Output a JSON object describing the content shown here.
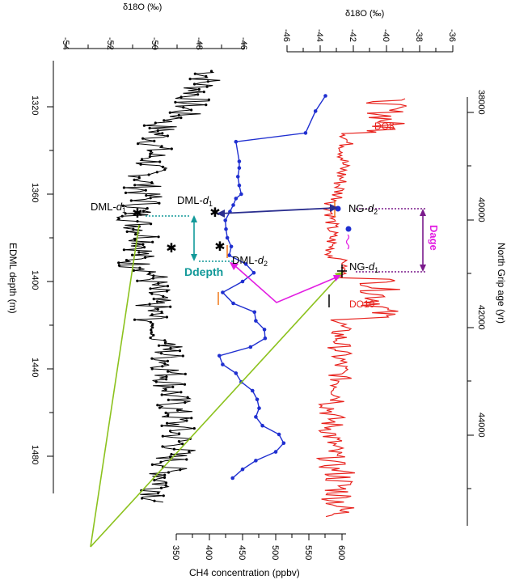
{
  "chart_data": {
    "type": "line",
    "panels": {
      "edml_d18o": {
        "top_axis_label": "δ18O (‰)",
        "top_ticks": [
          "-54",
          "-52",
          "-50",
          "-48",
          "-46"
        ],
        "left_axis_label": "EDML depth (m)",
        "left_ticks": [
          "1320",
          "1360",
          "1400",
          "1440",
          "1480"
        ],
        "color": "#000000"
      },
      "ch4": {
        "bottom_axis_label": "CH4 concentration (ppbv)",
        "bottom_ticks": [
          "350",
          "400",
          "450",
          "500",
          "550",
          "600"
        ],
        "color": "#1f2fd0"
      },
      "ngrip_d18o": {
        "top_axis_label": "δ18O (‰)",
        "top_ticks": [
          "-46",
          "-44",
          "-42",
          "-40",
          "-38",
          "-36"
        ],
        "right_axis_label": "North Grip age (yr)",
        "right_ticks": [
          "38000",
          "40000",
          "42000",
          "44000"
        ],
        "color": "#e8211c"
      }
    },
    "ch4_series": {
      "depth_m": [
        1315,
        1322,
        1332,
        1336,
        1345,
        1348,
        1352,
        1356,
        1360,
        1362,
        1365,
        1368,
        1372,
        1376,
        1380,
        1384,
        1388,
        1392,
        1396,
        1400,
        1405,
        1410,
        1414,
        1418,
        1422,
        1426,
        1430,
        1434,
        1438,
        1442,
        1446,
        1450,
        1454,
        1458,
        1462,
        1466,
        1470,
        1474,
        1478,
        1482,
        1486,
        1490
      ],
      "ch4_ppbv": [
        575,
        560,
        545,
        440,
        445,
        445,
        443,
        445,
        448,
        440,
        436,
        431,
        424,
        425,
        427,
        433,
        430,
        455,
        467,
        450,
        420,
        436,
        468,
        470,
        483,
        484,
        462,
        415,
        420,
        440,
        448,
        465,
        472,
        475,
        470,
        480,
        505,
        512,
        500,
        470,
        450,
        435
      ]
    },
    "labels": {
      "dml_d1_left": "DML-",
      "dml_d1_left_sub": "d",
      "dml_d1_left_subn": "1",
      "dml_d1": "DML-",
      "dml_d1_sub": "d",
      "dml_d1_subn": "1",
      "dml_d2": "DML-",
      "dml_d2_sub": "d",
      "dml_d2_subn": "2",
      "ng_d2": "NG-",
      "ng_d2_sub": "d",
      "ng_d2_subn": "2",
      "ng_d1": "NG-",
      "ng_d1_sub": "d",
      "ng_d1_subn": "1",
      "ddepth": "Ddepth",
      "dage": "Dage",
      "do8": "DO8",
      "do10": "DO10"
    },
    "colors": {
      "black": "#000000",
      "blue": "#1f2fd0",
      "red": "#e8211c",
      "teal": "#129999",
      "magenta": "#e21ee2",
      "purple": "#7a1a8c",
      "green": "#8cc21e",
      "navy": "#2b2f8f",
      "orange": "#f07818"
    }
  }
}
